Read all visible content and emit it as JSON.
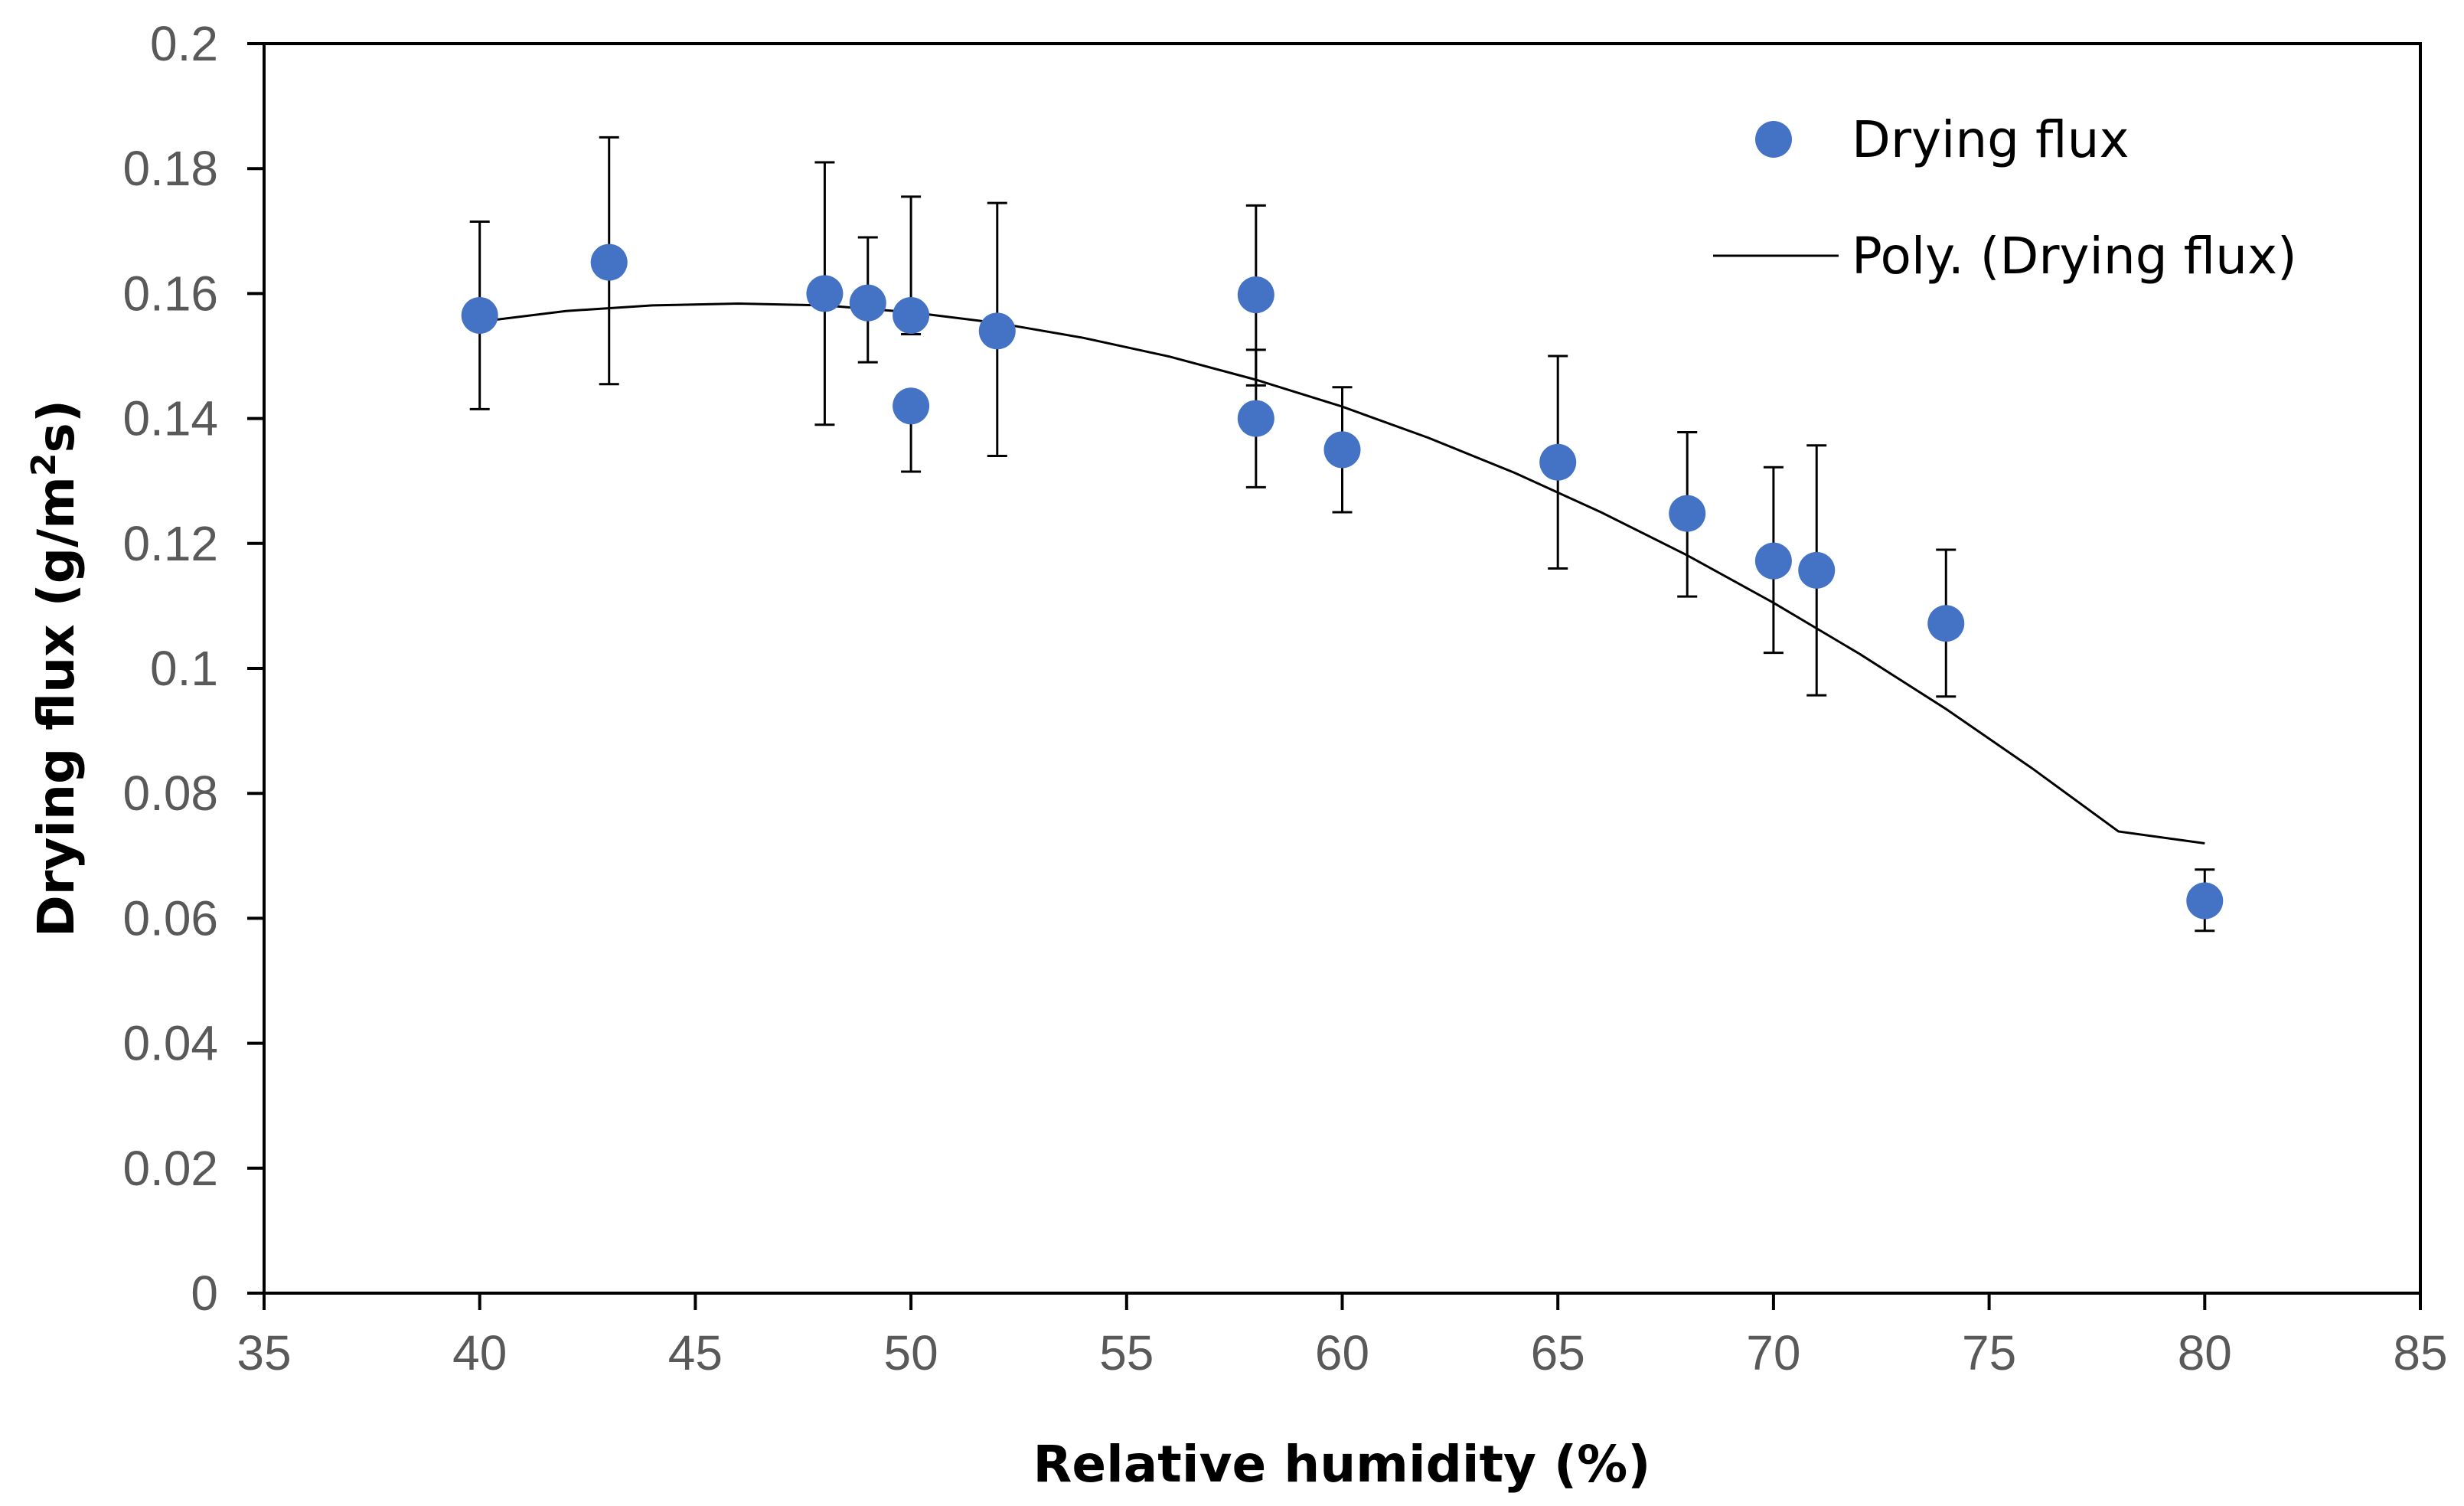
{
  "chart_data": {
    "type": "scatter",
    "xlabel": "Relative humidity (%)",
    "ylabel_main": "Drying flux (g/m",
    "ylabel_sup": "2",
    "ylabel_end": "s)",
    "xlim": [
      35,
      85
    ],
    "ylim": [
      0,
      0.2
    ],
    "x_ticks": [
      35,
      40,
      45,
      50,
      55,
      60,
      65,
      70,
      75,
      80,
      85
    ],
    "y_ticks": [
      0,
      0.02,
      0.04,
      0.06,
      0.08,
      0.1,
      0.12,
      0.14,
      0.16,
      0.18,
      0.2
    ],
    "x_tick_labels": [
      "35",
      "40",
      "45",
      "50",
      "55",
      "60",
      "65",
      "70",
      "75",
      "80",
      "85"
    ],
    "y_tick_labels": [
      "0",
      "0.02",
      "0.04",
      "0.06",
      "0.08",
      "0.1",
      "0.12",
      "0.14",
      "0.16",
      "0.18",
      "0.2"
    ],
    "marker_color": "#4472C4",
    "series": [
      {
        "name": "Drying flux",
        "points": [
          {
            "x": 40,
            "y": 0.1565,
            "err_low": 0.015,
            "err_high": 0.015
          },
          {
            "x": 43,
            "y": 0.165,
            "err_low": 0.0195,
            "err_high": 0.02
          },
          {
            "x": 48,
            "y": 0.16,
            "err_low": 0.021,
            "err_high": 0.021
          },
          {
            "x": 49,
            "y": 0.1585,
            "err_low": 0.0095,
            "err_high": 0.0105
          },
          {
            "x": 50,
            "y": 0.1565,
            "err_low": 0.003,
            "err_high": 0.019
          },
          {
            "x": 50,
            "y": 0.142,
            "err_low": 0.0105,
            "err_high": 0.002
          },
          {
            "x": 52,
            "y": 0.154,
            "err_low": 0.02,
            "err_high": 0.0205
          },
          {
            "x": 58,
            "y": 0.1598,
            "err_low": 0.0145,
            "err_high": 0.0143
          },
          {
            "x": 58,
            "y": 0.14,
            "err_low": 0.011,
            "err_high": 0.011
          },
          {
            "x": 60,
            "y": 0.135,
            "err_low": 0.01,
            "err_high": 0.01
          },
          {
            "x": 65,
            "y": 0.133,
            "err_low": 0.017,
            "err_high": 0.017
          },
          {
            "x": 68,
            "y": 0.1248,
            "err_low": 0.0133,
            "err_high": 0.013
          },
          {
            "x": 70,
            "y": 0.1172,
            "err_low": 0.0147,
            "err_high": 0.015
          },
          {
            "x": 71,
            "y": 0.1157,
            "err_low": 0.02,
            "err_high": 0.02
          },
          {
            "x": 74,
            "y": 0.1072,
            "err_low": 0.0117,
            "err_high": 0.0118
          },
          {
            "x": 80,
            "y": 0.0628,
            "err_low": 0.0048,
            "err_high": 0.005
          }
        ]
      },
      {
        "name": "Poly. (Drying flux)",
        "type": "line",
        "points": [
          {
            "x": 40,
            "y": 0.1555
          },
          {
            "x": 42,
            "y": 0.1572
          },
          {
            "x": 44,
            "y": 0.1581
          },
          {
            "x": 46,
            "y": 0.1584
          },
          {
            "x": 48,
            "y": 0.1581
          },
          {
            "x": 50,
            "y": 0.157
          },
          {
            "x": 52,
            "y": 0.1553
          },
          {
            "x": 54,
            "y": 0.1529
          },
          {
            "x": 56,
            "y": 0.1499
          },
          {
            "x": 58,
            "y": 0.1462
          },
          {
            "x": 60,
            "y": 0.1419
          },
          {
            "x": 62,
            "y": 0.1369
          },
          {
            "x": 64,
            "y": 0.1313
          },
          {
            "x": 66,
            "y": 0.125
          },
          {
            "x": 68,
            "y": 0.1181
          },
          {
            "x": 70,
            "y": 0.1105
          },
          {
            "x": 72,
            "y": 0.1023
          },
          {
            "x": 74,
            "y": 0.0935
          },
          {
            "x": 76,
            "y": 0.084
          },
          {
            "x": 78,
            "y": 0.0739
          },
          {
            "x": 80,
            "y": 0.072
          }
        ]
      }
    ],
    "legend": {
      "position": "top-right",
      "entries": [
        "Drying flux",
        "Poly. (Drying flux)"
      ]
    },
    "grid": false
  }
}
